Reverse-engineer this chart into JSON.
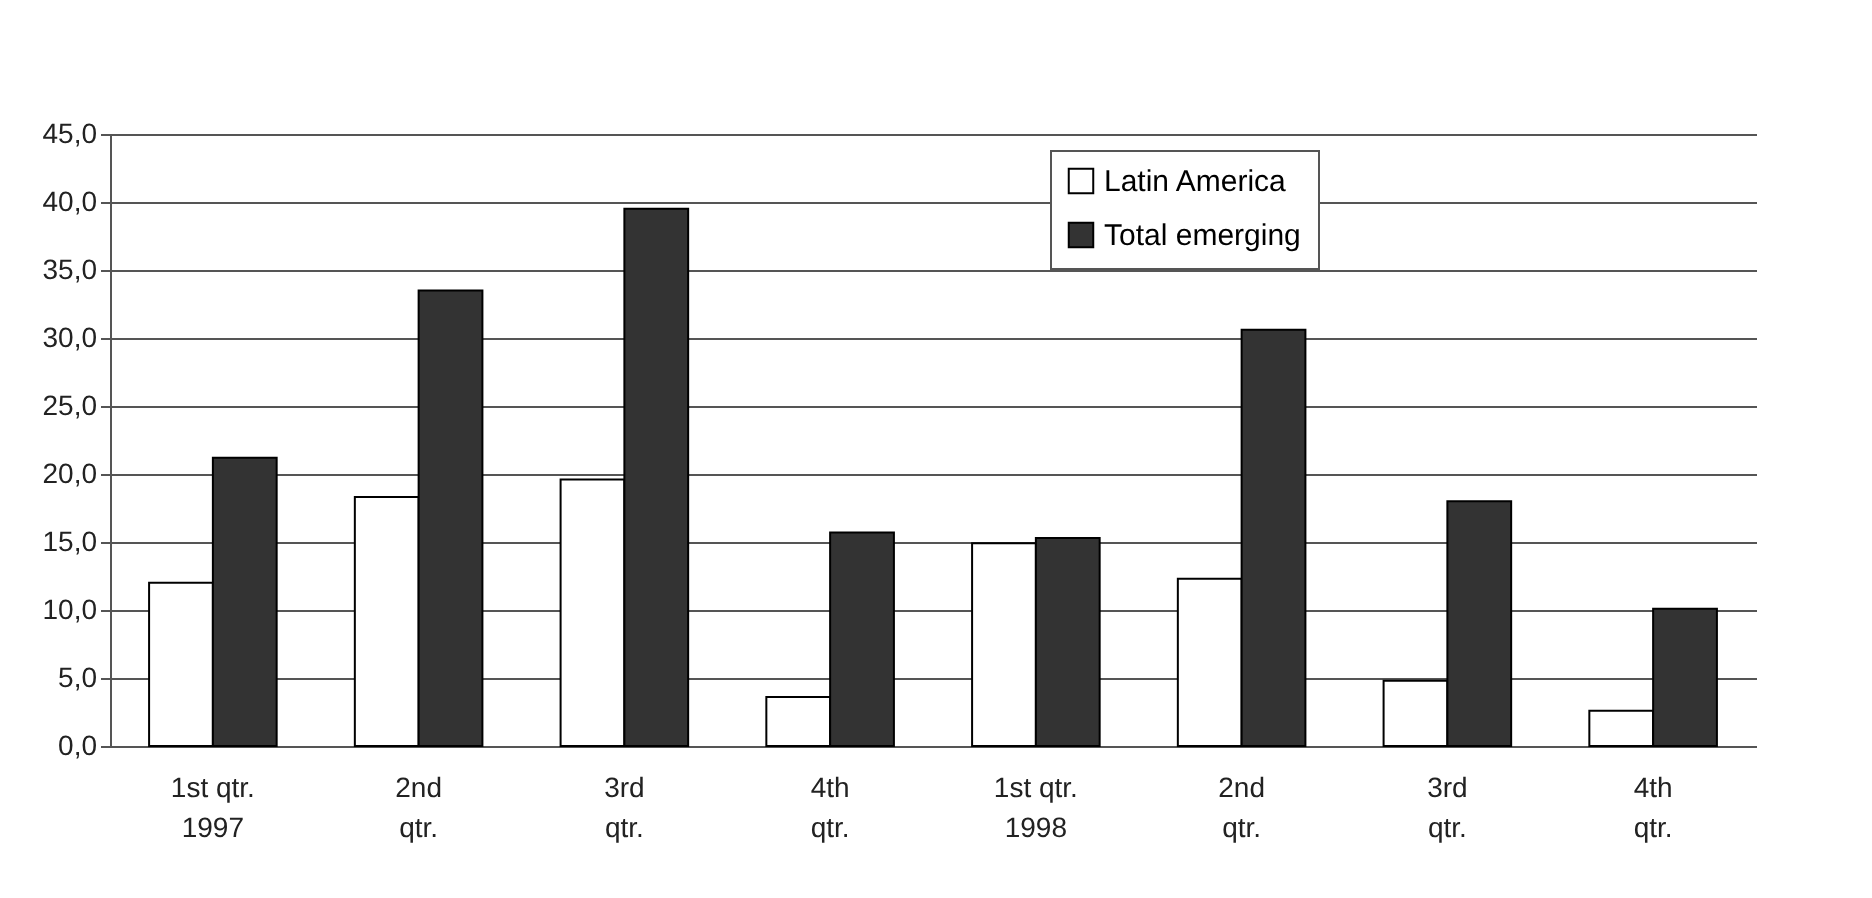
{
  "chart_data": {
    "type": "bar",
    "categories": [
      "1st qtr.\n1997",
      "2nd\nqtr.",
      "3rd\nqtr.",
      "4th\nqtr.",
      "1st qtr.\n1998",
      "2nd\nqtr.",
      "3rd\nqtr.",
      "4th\nqtr."
    ],
    "series": [
      {
        "name": "Latin America",
        "color": "#ffffff",
        "values": [
          12.0,
          18.3,
          19.6,
          3.6,
          14.9,
          12.3,
          4.8,
          2.6
        ]
      },
      {
        "name": "Total emerging",
        "color": "#333333",
        "values": [
          21.2,
          33.5,
          39.5,
          15.7,
          15.3,
          30.6,
          18.0,
          10.1
        ]
      }
    ],
    "ylim": [
      0,
      45
    ],
    "yticks": [
      {
        "value": 0,
        "label": "0,0"
      },
      {
        "value": 5,
        "label": "5,0"
      },
      {
        "value": 10,
        "label": "10,0"
      },
      {
        "value": 15,
        "label": "15,0"
      },
      {
        "value": 20,
        "label": "20,0"
      },
      {
        "value": 25,
        "label": "25,0"
      },
      {
        "value": 30,
        "label": "30,0"
      },
      {
        "value": 35,
        "label": "35,0"
      },
      {
        "value": 40,
        "label": "40,0"
      },
      {
        "value": 45,
        "label": "45,0"
      }
    ],
    "grid": "y",
    "legend": "top"
  }
}
